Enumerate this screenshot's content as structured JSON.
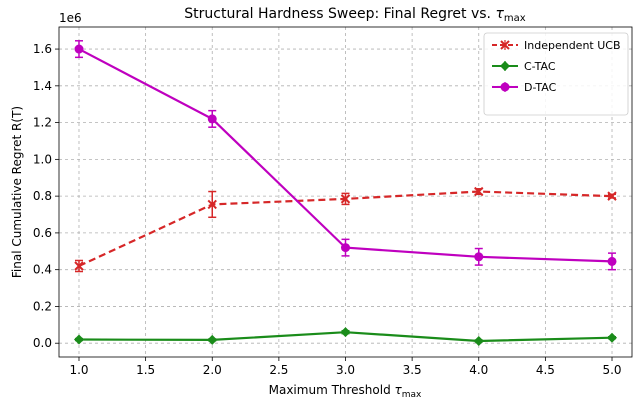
{
  "chart_data": {
    "type": "line",
    "title_text": "Structural Hardness Sweep: Final Regret vs. ",
    "title_sym": "τ",
    "title_sub": "max",
    "xlabel_text": "Maximum Threshold ",
    "xlabel_sym": "τ",
    "xlabel_sub": "max",
    "ylabel": "Final Cumulative Regret R(T)",
    "y_multiplier": "1e6",
    "xlim": [
      0.85,
      5.15
    ],
    "ylim": [
      -0.075,
      1.72
    ],
    "x_ticks": [
      1.0,
      1.5,
      2.0,
      2.5,
      3.0,
      3.5,
      4.0,
      4.5,
      5.0
    ],
    "x_tick_labels": [
      "1.0",
      "1.5",
      "2.0",
      "2.5",
      "3.0",
      "3.5",
      "4.0",
      "4.5",
      "5.0"
    ],
    "y_ticks": [
      0.0,
      0.2,
      0.4,
      0.6,
      0.8,
      1.0,
      1.2,
      1.4,
      1.6
    ],
    "y_tick_labels": [
      "0.0",
      "0.2",
      "0.4",
      "0.6",
      "0.8",
      "1.0",
      "1.2",
      "1.4",
      "1.6"
    ],
    "grid": true,
    "legend_position": "top-right",
    "x": [
      1.0,
      2.0,
      3.0,
      4.0,
      5.0
    ],
    "series": [
      {
        "name": "Independent UCB",
        "values": [
          0.42,
          0.755,
          0.785,
          0.825,
          0.8
        ],
        "errors": [
          0.03,
          0.07,
          0.03,
          0.015,
          0.01
        ],
        "color": "#d62728",
        "dash": true,
        "marker": "x"
      },
      {
        "name": "C-TAC",
        "values": [
          0.02,
          0.018,
          0.06,
          0.012,
          0.03
        ],
        "errors": [
          0.005,
          0.005,
          0.008,
          0.005,
          0.005
        ],
        "color": "#1a8c1a",
        "dash": false,
        "marker": "diamond"
      },
      {
        "name": "D-TAC",
        "values": [
          1.6,
          1.22,
          0.52,
          0.47,
          0.445
        ],
        "errors": [
          0.045,
          0.045,
          0.045,
          0.045,
          0.045
        ],
        "color": "#bf00bf",
        "dash": false,
        "marker": "circle"
      }
    ]
  }
}
